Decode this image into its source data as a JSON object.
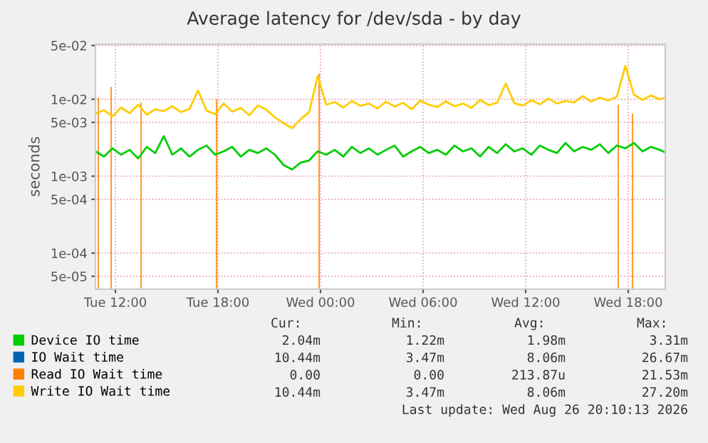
{
  "chart_data": {
    "type": "line",
    "title": "Average latency for /dev/sda - by day",
    "ylabel": "seconds",
    "x": [
      "2026-08-25T10:50",
      "2026-08-25T11:20",
      "2026-08-25T11:50",
      "2026-08-25T12:20",
      "2026-08-25T12:50",
      "2026-08-25T13:20",
      "2026-08-25T13:50",
      "2026-08-25T14:20",
      "2026-08-25T14:50",
      "2026-08-25T15:20",
      "2026-08-25T15:50",
      "2026-08-25T16:20",
      "2026-08-25T16:50",
      "2026-08-25T17:20",
      "2026-08-25T17:50",
      "2026-08-25T18:20",
      "2026-08-25T18:50",
      "2026-08-25T19:20",
      "2026-08-25T19:50",
      "2026-08-25T20:20",
      "2026-08-25T20:50",
      "2026-08-25T21:20",
      "2026-08-25T21:50",
      "2026-08-25T22:20",
      "2026-08-25T22:50",
      "2026-08-25T23:20",
      "2026-08-25T23:50",
      "2026-08-26T00:20",
      "2026-08-26T00:50",
      "2026-08-26T01:20",
      "2026-08-26T01:50",
      "2026-08-26T02:20",
      "2026-08-26T02:50",
      "2026-08-26T03:20",
      "2026-08-26T03:50",
      "2026-08-26T04:20",
      "2026-08-26T04:50",
      "2026-08-26T05:20",
      "2026-08-26T05:50",
      "2026-08-26T06:20",
      "2026-08-26T06:50",
      "2026-08-26T07:20",
      "2026-08-26T07:50",
      "2026-08-26T08:20",
      "2026-08-26T08:50",
      "2026-08-26T09:20",
      "2026-08-26T09:50",
      "2026-08-26T10:20",
      "2026-08-26T10:50",
      "2026-08-26T11:20",
      "2026-08-26T11:50",
      "2026-08-26T12:20",
      "2026-08-26T12:50",
      "2026-08-26T13:20",
      "2026-08-26T13:50",
      "2026-08-26T14:20",
      "2026-08-26T14:50",
      "2026-08-26T15:20",
      "2026-08-26T15:50",
      "2026-08-26T16:20",
      "2026-08-26T16:50",
      "2026-08-26T17:20",
      "2026-08-26T17:50",
      "2026-08-26T18:20",
      "2026-08-26T18:50",
      "2026-08-26T19:20",
      "2026-08-26T19:50",
      "2026-08-26T20:10"
    ],
    "series": [
      {
        "name": "Device IO time",
        "color": "#00cc00",
        "values": [
          0.0021,
          0.0018,
          0.0023,
          0.0019,
          0.0022,
          0.0017,
          0.0024,
          0.002,
          0.00331,
          0.0019,
          0.0023,
          0.0018,
          0.0022,
          0.0025,
          0.0019,
          0.0021,
          0.0024,
          0.0018,
          0.0022,
          0.002,
          0.0023,
          0.0019,
          0.0014,
          0.00122,
          0.0015,
          0.0016,
          0.0021,
          0.0019,
          0.0022,
          0.0018,
          0.0024,
          0.002,
          0.0023,
          0.0019,
          0.0022,
          0.0025,
          0.0018,
          0.0021,
          0.0024,
          0.002,
          0.0022,
          0.0019,
          0.0025,
          0.0021,
          0.0023,
          0.0018,
          0.0024,
          0.002,
          0.0026,
          0.0021,
          0.0023,
          0.0019,
          0.0025,
          0.0022,
          0.002,
          0.0027,
          0.0021,
          0.0024,
          0.0022,
          0.0026,
          0.002,
          0.0025,
          0.0023,
          0.0027,
          0.0021,
          0.0024,
          0.0022,
          0.00204
        ]
      },
      {
        "name": "IO Wait time",
        "color": "#0066b3",
        "values": [
          null,
          null,
          null,
          null,
          null,
          null,
          null,
          null,
          null,
          null,
          null,
          null,
          null,
          null,
          null,
          null,
          null,
          null,
          null,
          null,
          null,
          null,
          null,
          null,
          null,
          null,
          null,
          null,
          null,
          null,
          null,
          null,
          null,
          null,
          null,
          null,
          null,
          null,
          null,
          null,
          null,
          null,
          null,
          null,
          null,
          null,
          null,
          null,
          null,
          null,
          null,
          null,
          null,
          null,
          null,
          null,
          null,
          null,
          null,
          null,
          null,
          null,
          null,
          null,
          null,
          null,
          null,
          null
        ]
      },
      {
        "name": "Read IO Wait time",
        "color": "#ff8000",
        "type": "bar",
        "x": [
          "2026-08-25T11:00",
          "2026-08-25T11:45",
          "2026-08-25T13:30",
          "2026-08-25T17:55",
          "2026-08-25T23:55",
          "2026-08-26T17:25",
          "2026-08-26T18:15"
        ],
        "values": [
          0.0105,
          0.0145,
          0.009,
          0.01,
          0.0215,
          0.0085,
          0.0065
        ]
      },
      {
        "name": "Write IO Wait time",
        "color": "#ffcc00",
        "values": [
          0.0065,
          0.0072,
          0.006,
          0.0078,
          0.0066,
          0.0085,
          0.0063,
          0.0074,
          0.007,
          0.0081,
          0.0068,
          0.0075,
          0.013,
          0.0071,
          0.0064,
          0.0088,
          0.0069,
          0.0077,
          0.0062,
          0.0083,
          0.0073,
          0.0058,
          0.0049,
          0.0042,
          0.0055,
          0.0068,
          0.02,
          0.0085,
          0.0092,
          0.0078,
          0.0095,
          0.0082,
          0.0088,
          0.0076,
          0.0093,
          0.008,
          0.009,
          0.0074,
          0.0096,
          0.0085,
          0.0079,
          0.0094,
          0.0081,
          0.0088,
          0.0077,
          0.0098,
          0.0084,
          0.009,
          0.016,
          0.0089,
          0.0083,
          0.0097,
          0.0086,
          0.0102,
          0.0088,
          0.0095,
          0.0091,
          0.011,
          0.0093,
          0.0105,
          0.0096,
          0.0108,
          0.0272,
          0.0115,
          0.0098,
          0.0112,
          0.01,
          0.01044
        ]
      }
    ],
    "log": true,
    "ylim": [
      3.4e-05,
      0.052
    ],
    "yticks": [
      {
        "value": 0.05,
        "label": "5e-02"
      },
      {
        "value": 0.01,
        "label": "1e-02"
      },
      {
        "value": 0.005,
        "label": "5e-03"
      },
      {
        "value": 0.001,
        "label": "1e-03"
      },
      {
        "value": 0.0005,
        "label": "5e-04"
      },
      {
        "value": 0.0001,
        "label": "1e-04"
      },
      {
        "value": 5e-05,
        "label": "5e-05"
      }
    ],
    "xlim": [
      "2026-08-25T10:50",
      "2026-08-26T20:10"
    ],
    "xticks": [
      {
        "value": "2026-08-25T12:00",
        "label": "Tue 12:00"
      },
      {
        "value": "2026-08-25T18:00",
        "label": "Tue 18:00"
      },
      {
        "value": "2026-08-26T00:00",
        "label": "Wed 00:00"
      },
      {
        "value": "2026-08-26T06:00",
        "label": "Wed 06:00"
      },
      {
        "value": "2026-08-26T12:00",
        "label": "Wed 12:00"
      },
      {
        "value": "2026-08-26T18:00",
        "label": "Wed 18:00"
      }
    ],
    "grid": true,
    "legend": "bottom",
    "line_style": "solid",
    "marker": "none",
    "annotations": [
      "Cur:",
      "Min:",
      "Avg:",
      "Max:",
      "2.04m",
      "1.22m",
      "1.98m",
      "3.31m",
      "10.44m",
      "3.47m",
      "8.06m",
      "26.67m",
      "0.00",
      "0.00",
      "213.87u",
      "21.53m",
      "10.44m",
      "3.47m",
      "8.06m",
      "27.20m",
      "Last update: Wed Aug 26 20:10:13 2026"
    ]
  }
}
